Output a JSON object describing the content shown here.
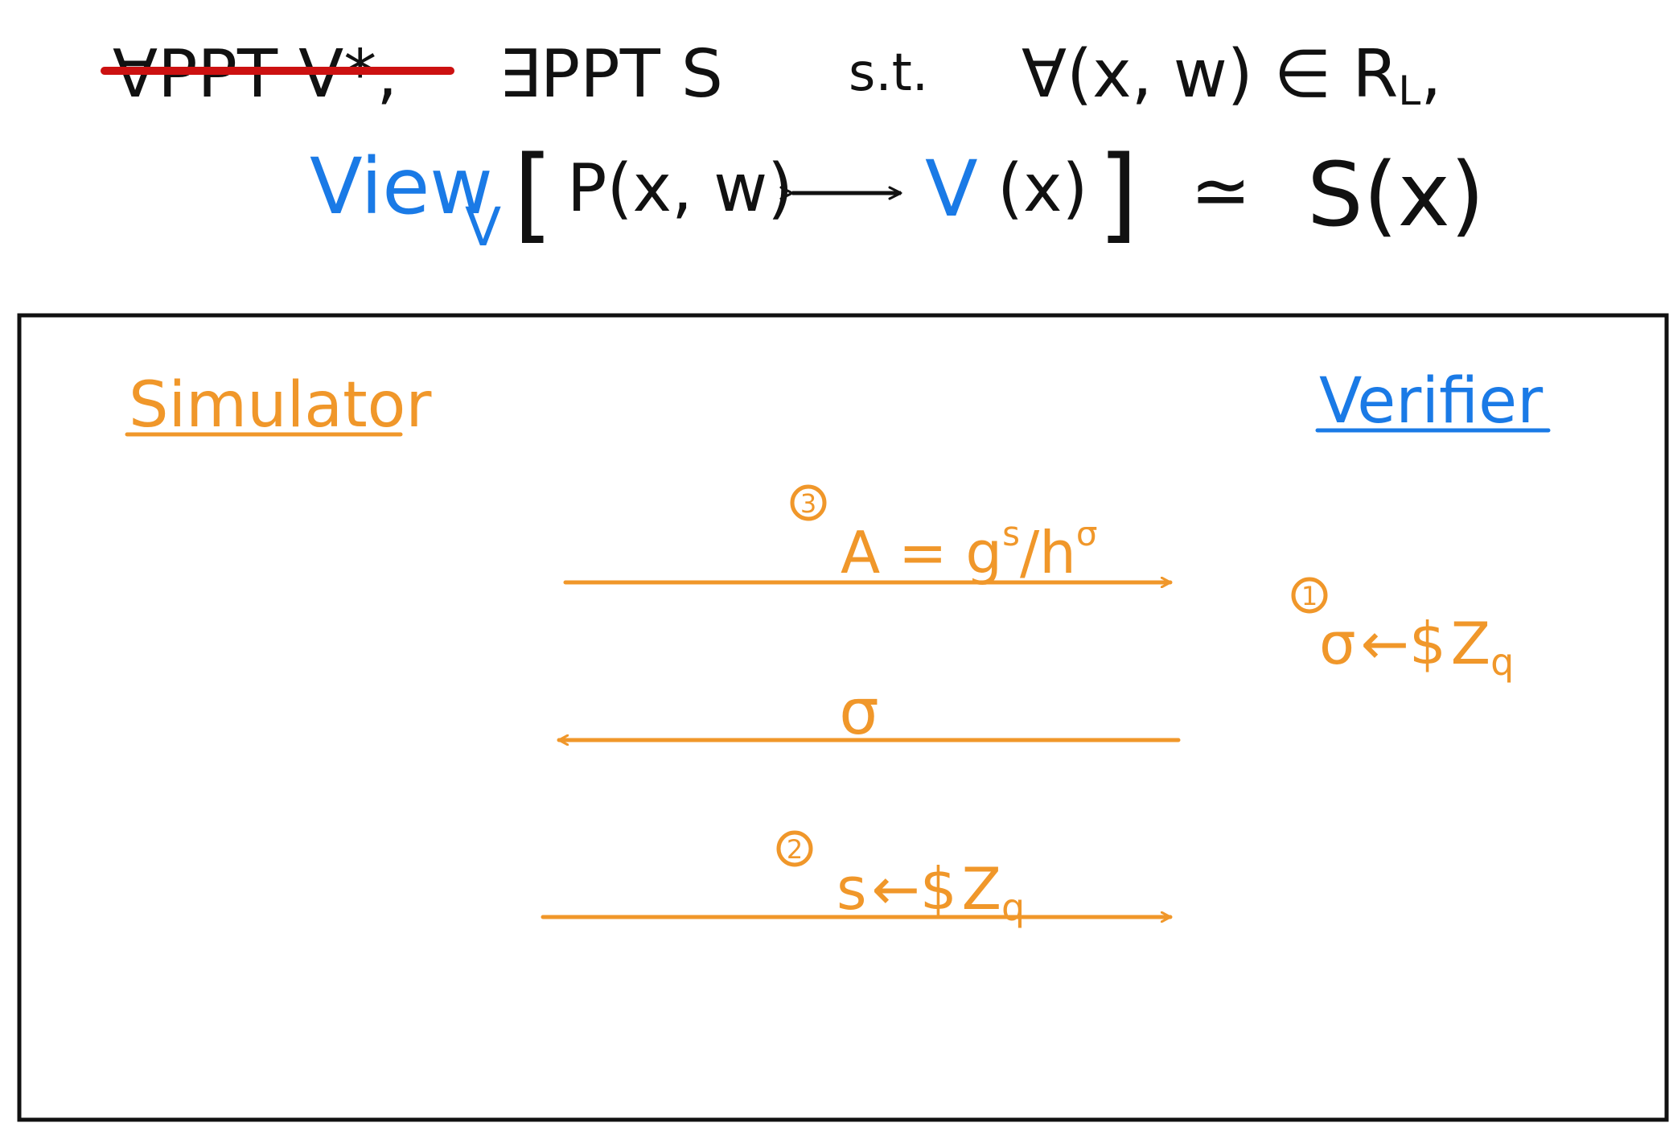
{
  "colors": {
    "ink": "#111111",
    "blue": "#1a7ae6",
    "orange": "#f0972a",
    "red": "#cc1111",
    "box_border": "#111111",
    "background": "#ffffff"
  },
  "header": {
    "line1": {
      "struck_quantifier": "∀PPT V*,",
      "exists_simulator": "∃PPT S",
      "such_that": "s.t.",
      "for_all_relation": "∀(x, w) ∈ R",
      "relation_subscript": "L",
      "trailing_comma": ","
    },
    "line2": {
      "view": "View",
      "view_subscript": "V",
      "open_bracket": "[",
      "prover": "P(x, w)",
      "arrow": "⟷",
      "verifier": "V",
      "verifier_arg": "(x)",
      "close_bracket": "]",
      "approx": "≃",
      "simulator_output": "S(x)"
    }
  },
  "diagram": {
    "left_party": "Simulator",
    "right_party": "Verifier",
    "steps": [
      {
        "id": "step-3",
        "number": "3",
        "direction": "simulator-to-verifier",
        "label_main": "A = g",
        "label_exp1": "s",
        "label_div": "/h",
        "label_exp2": "σ"
      },
      {
        "id": "step-challenge",
        "direction": "verifier-to-simulator",
        "label": "σ"
      },
      {
        "id": "step-2",
        "number": "2",
        "direction": "simulator-to-verifier",
        "label_var": "s",
        "label_sample": "←$",
        "label_group": "Z",
        "label_group_sub": "q"
      }
    ],
    "verifier_step": {
      "number": "1",
      "label_var": "σ",
      "label_sample": "←$",
      "label_group": "Z",
      "label_group_sub": "q"
    }
  }
}
